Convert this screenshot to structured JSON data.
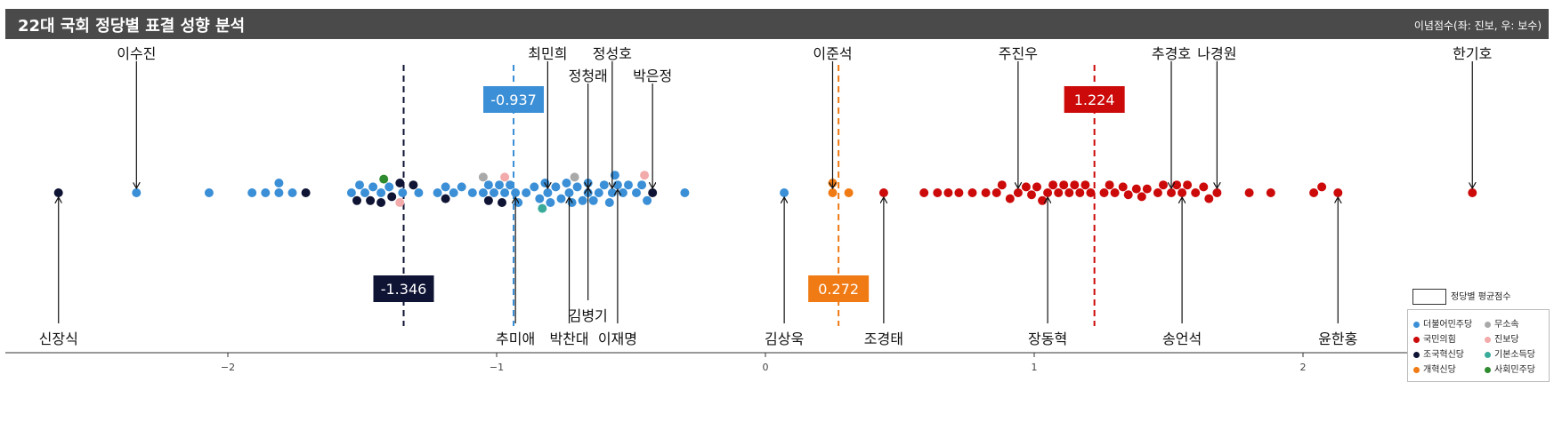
{
  "header": {
    "title": "22대 국회 정당별 표결 성향 분석",
    "note": "이념점수(좌: 진보, 우: 보수)"
  },
  "chart_data": {
    "type": "scatter",
    "title": "22대 국회 정당별 표결 성향 분석",
    "xlabel": "",
    "ylabel": "",
    "xlim": [
      -2.82,
      2.9
    ],
    "x_ticks": [
      -2,
      -1,
      0,
      1,
      2
    ],
    "grid": false,
    "legend_position": "bottom-right",
    "mean_legend_label": "정당별 평균점수",
    "party_colors": {
      "democratic": "#3a8fd6",
      "ppp": "#cc0a0a",
      "rebuilding": "#0f1434",
      "reform": "#f07a13",
      "independent": "#a9a9a9",
      "progressive": "#f2aaaa",
      "basic_income": "#3aab9a",
      "social_democratic": "#2e8b2e"
    },
    "series": [
      {
        "name": "더불어민주당",
        "key": "democratic"
      },
      {
        "name": "국민의힘",
        "key": "ppp"
      },
      {
        "name": "조국혁신당",
        "key": "rebuilding"
      },
      {
        "name": "개혁신당",
        "key": "reform"
      },
      {
        "name": "무소속",
        "key": "independent"
      },
      {
        "name": "진보당",
        "key": "progressive"
      },
      {
        "name": "기본소득당",
        "key": "basic_income"
      },
      {
        "name": "사회민주당",
        "key": "social_democratic"
      }
    ],
    "party_means": [
      {
        "party": "rebuilding",
        "value": -1.346,
        "label": "-1.346"
      },
      {
        "party": "democratic",
        "value": -0.937,
        "label": "-0.937"
      },
      {
        "party": "reform",
        "value": 0.272,
        "label": "0.272"
      },
      {
        "party": "ppp",
        "value": 1.224,
        "label": "1.224"
      }
    ],
    "members": [
      {
        "name": "신장식",
        "x": -2.63,
        "party": "rebuilding",
        "label_pos": "bottom"
      },
      {
        "name": "이수진",
        "x": -2.34,
        "party": "democratic",
        "label_pos": "top"
      },
      {
        "name": "추미애",
        "x": -0.93,
        "party": "democratic",
        "label_pos": "bottom"
      },
      {
        "name": "최민희",
        "x": -0.81,
        "party": "democratic",
        "label_pos": "top"
      },
      {
        "name": "박찬대",
        "x": -0.73,
        "party": "democratic",
        "label_pos": "bottom"
      },
      {
        "name": "정청래",
        "x": -0.66,
        "party": "democratic",
        "label_pos": "top"
      },
      {
        "name": "김병기",
        "x": -0.66,
        "party": "democratic",
        "label_pos": "bottom"
      },
      {
        "name": "정성호",
        "x": -0.57,
        "party": "democratic",
        "label_pos": "top"
      },
      {
        "name": "이재명",
        "x": -0.55,
        "party": "democratic",
        "label_pos": "bottom"
      },
      {
        "name": "박은정",
        "x": -0.42,
        "party": "rebuilding",
        "label_pos": "top"
      },
      {
        "name": "김상욱",
        "x": 0.07,
        "party": "democratic",
        "label_pos": "bottom"
      },
      {
        "name": "이준석",
        "x": 0.25,
        "party": "reform",
        "label_pos": "top"
      },
      {
        "name": "조경태",
        "x": 0.44,
        "party": "ppp",
        "label_pos": "bottom"
      },
      {
        "name": "주진우",
        "x": 0.94,
        "party": "ppp",
        "label_pos": "top"
      },
      {
        "name": "장동혁",
        "x": 1.05,
        "party": "ppp",
        "label_pos": "bottom"
      },
      {
        "name": "추경호",
        "x": 1.51,
        "party": "ppp",
        "label_pos": "top"
      },
      {
        "name": "송언석",
        "x": 1.55,
        "party": "ppp",
        "label_pos": "bottom"
      },
      {
        "name": "나경원",
        "x": 1.68,
        "party": "ppp",
        "label_pos": "top"
      },
      {
        "name": "윤한홍",
        "x": 2.13,
        "party": "ppp",
        "label_pos": "bottom"
      },
      {
        "name": "한기호",
        "x": 2.63,
        "party": "ppp",
        "label_pos": "top"
      }
    ],
    "other_points": {
      "democratic": [
        -2.07,
        -1.91,
        -1.86,
        -1.81,
        -1.76,
        -1.81,
        -1.54,
        -1.49,
        -1.51,
        -1.46,
        -1.43,
        -1.4,
        -1.35,
        -1.29,
        -1.22,
        -1.19,
        -1.16,
        -1.13,
        -1.09,
        -1.05,
        -1.03,
        -1.01,
        -0.99,
        -0.97,
        -0.95,
        -0.92,
        -0.89,
        -0.86,
        -0.84,
        -0.82,
        -0.8,
        -0.78,
        -0.76,
        -0.74,
        -0.72,
        -0.7,
        -0.68,
        -0.64,
        -0.62,
        -0.6,
        -0.58,
        -0.56,
        -0.53,
        -0.51,
        -0.48,
        -0.46,
        -0.44,
        -0.3
      ],
      "ppp": [
        0.59,
        0.64,
        0.68,
        0.72,
        0.77,
        0.82,
        0.86,
        0.88,
        0.91,
        0.97,
        0.99,
        1.01,
        1.03,
        1.07,
        1.09,
        1.11,
        1.13,
        1.15,
        1.17,
        1.19,
        1.21,
        1.26,
        1.28,
        1.3,
        1.33,
        1.35,
        1.38,
        1.4,
        1.42,
        1.46,
        1.48,
        1.53,
        1.57,
        1.6,
        1.63,
        1.65,
        1.8,
        1.88,
        2.04,
        2.07
      ],
      "rebuilding": [
        -1.71,
        -1.52,
        -1.47,
        -1.43,
        -1.39,
        -1.36,
        -1.31,
        -1.19,
        -1.03,
        -0.98
      ],
      "reform": [
        0.31,
        0.25
      ],
      "independent": [
        -1.05,
        -0.71
      ],
      "progressive": [
        -1.36,
        -0.97,
        -0.45
      ],
      "basic_income": [
        -0.83
      ],
      "social_democratic": [
        -1.42
      ]
    }
  }
}
